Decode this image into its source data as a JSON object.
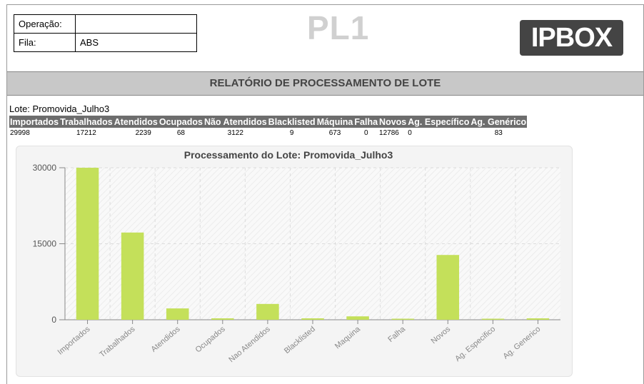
{
  "header": {
    "operacao_label": "Operação:",
    "operacao_value": "",
    "fila_label": "Fila:",
    "fila_value": "ABS",
    "title": "PL1",
    "logo_text": "IPBOX"
  },
  "report": {
    "band_title": "RELATÓRIO DE PROCESSAMENTO DE LOTE",
    "lote_line": "Lote: Promovida_Julho3"
  },
  "stats": {
    "headers": [
      "Importados",
      "Trabalhados",
      "Atendidos",
      "Ocupados",
      "Não Atendidos",
      "Blacklisted",
      "Máquina",
      "Falha",
      "Novos",
      "Ag. Específico",
      "Ag. Genérico"
    ],
    "values": [
      "29998",
      "17212",
      "2239",
      "68",
      "3122",
      "9",
      "673",
      "0",
      "12786",
      "0",
      "83"
    ]
  },
  "chart_data": {
    "type": "bar",
    "title": "Processamento do Lote: Promovida_Julho3",
    "categories": [
      "Importados",
      "Trabalhados",
      "Atendidos",
      "Ocupados",
      "Nao Atendidos",
      "Blacklisted",
      "Maquina",
      "Falha",
      "Novos",
      "Ag. Especifico",
      "Ag. Generico"
    ],
    "values": [
      29998,
      17212,
      2239,
      68,
      3122,
      9,
      673,
      0,
      12786,
      0,
      83
    ],
    "yticks": [
      0,
      15000,
      30000
    ],
    "ylim": [
      0,
      30000
    ],
    "color": "#c4e05a",
    "grid": true
  }
}
